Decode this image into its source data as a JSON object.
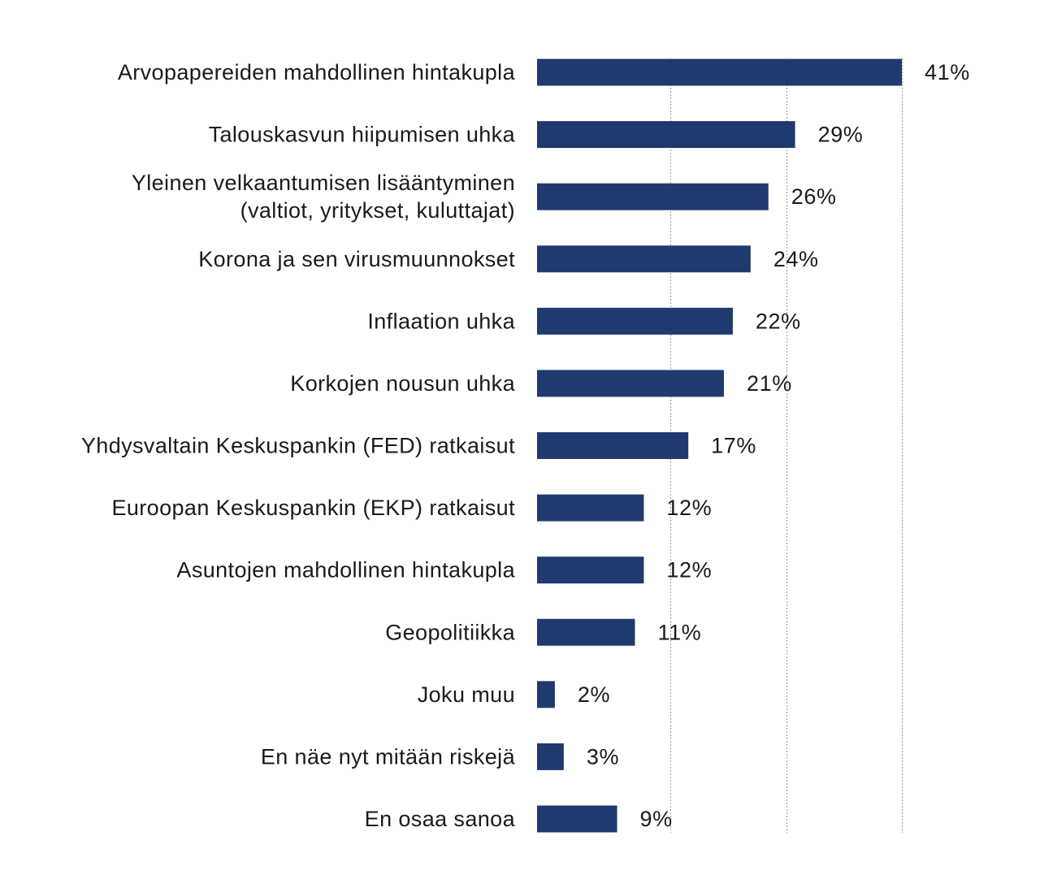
{
  "chart_data": {
    "type": "bar",
    "orientation": "horizontal",
    "title": "",
    "xlabel": "",
    "ylabel": "",
    "unit": "%",
    "xlim": [
      0,
      41
    ],
    "gridlines": [
      15,
      28,
      41
    ],
    "grid": true,
    "bar_color": "#1f3a6e",
    "categories": [
      [
        "Arvopapereiden mahdollinen hintakupla"
      ],
      [
        "Talouskasvun hiipumisen uhka"
      ],
      [
        "Yleinen velkaantumisen lisääntyminen",
        "(valtiot, yritykset, kuluttajat)"
      ],
      [
        "Korona ja sen virusmuunnokset"
      ],
      [
        "Inflaation uhka"
      ],
      [
        "Korkojen nousun uhka"
      ],
      [
        "Yhdysvaltain Keskuspankin (FED) ratkaisut"
      ],
      [
        "Euroopan Keskuspankin (EKP) ratkaisut"
      ],
      [
        "Asuntojen mahdollinen hintakupla"
      ],
      [
        "Geopolitiikka"
      ],
      [
        "Joku muu"
      ],
      [
        "En näe nyt mitään riskejä"
      ],
      [
        "En osaa sanoa"
      ]
    ],
    "values": [
      41,
      29,
      26,
      24,
      22,
      21,
      17,
      12,
      12,
      11,
      2,
      3,
      9
    ],
    "value_labels": [
      "41%",
      "29%",
      "26%",
      "24%",
      "22%",
      "21%",
      "17%",
      "12%",
      "12%",
      "11%",
      "2%",
      "3%",
      "9%"
    ]
  }
}
